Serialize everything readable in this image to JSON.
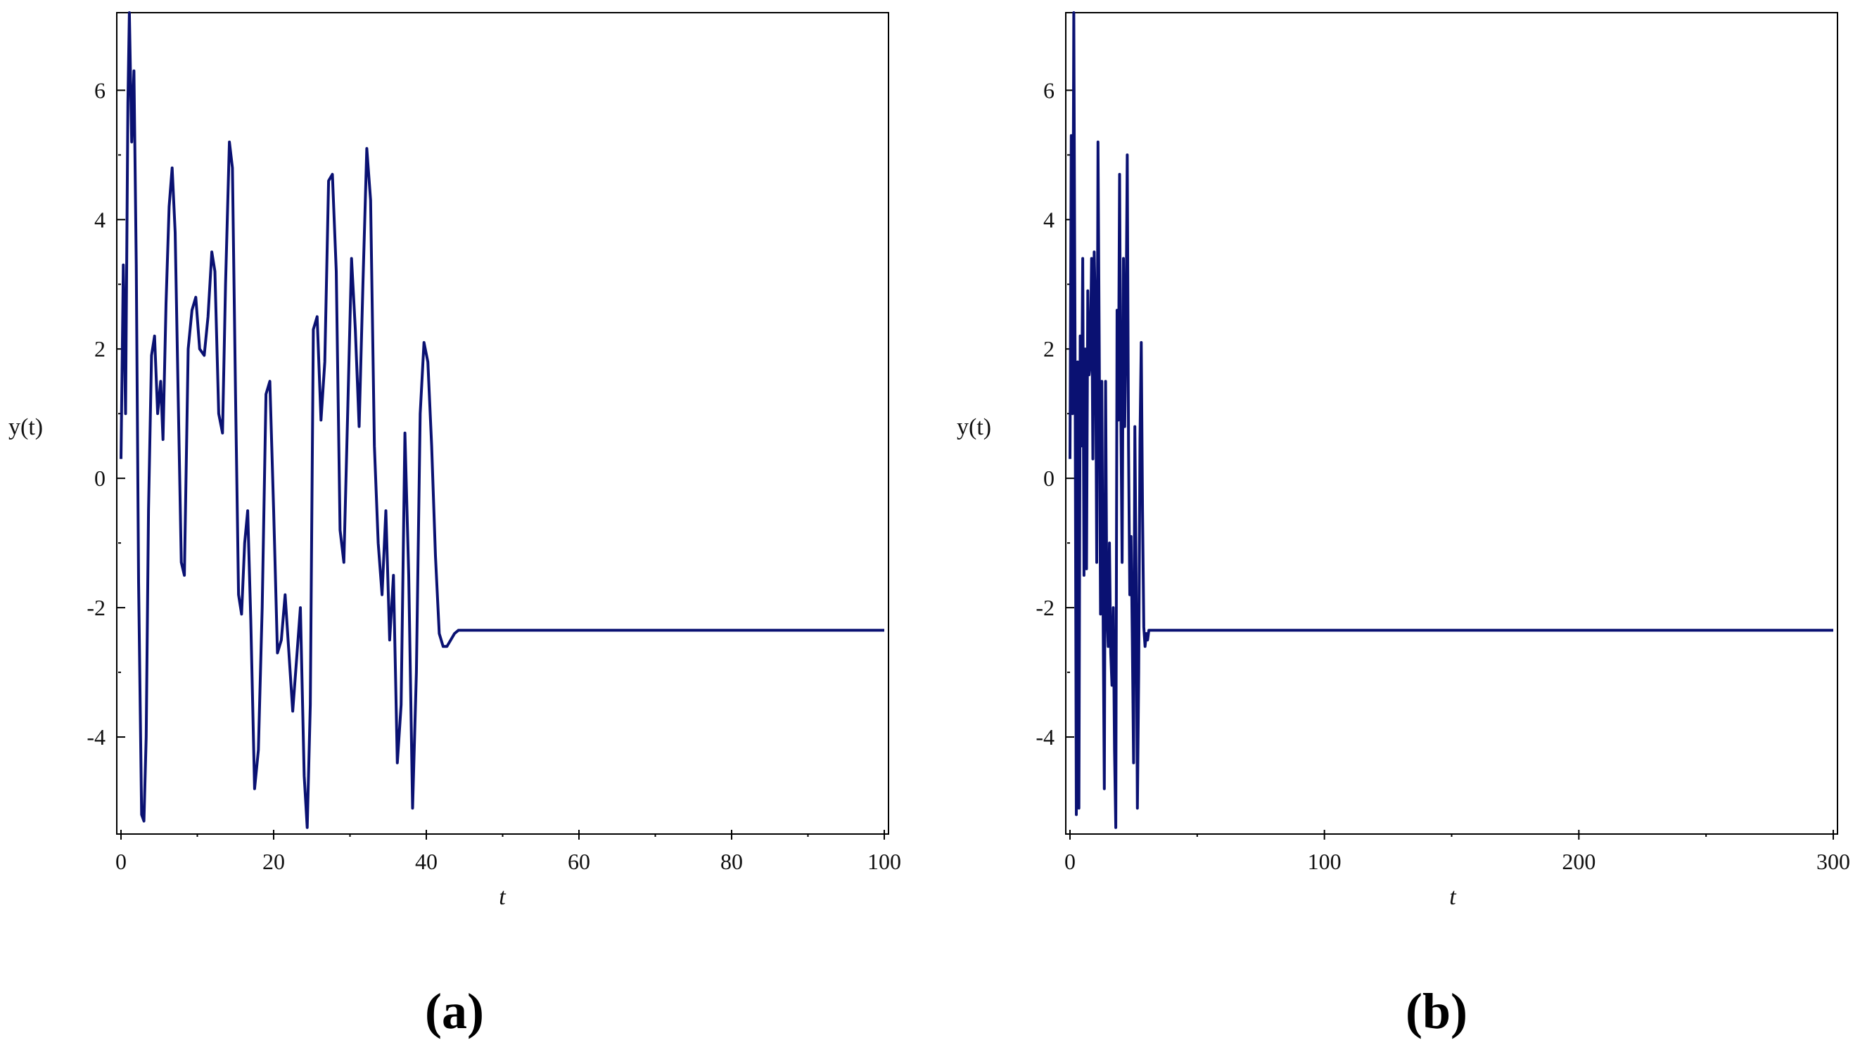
{
  "colors": {
    "line": "#0a1172",
    "frame": "#000000",
    "text": "#111111"
  },
  "chart_data": [
    {
      "type": "line",
      "panel_label": "(a)",
      "xlabel": "t",
      "ylabel": "y(t)",
      "xlim": [
        0,
        100
      ],
      "ylim": [
        -5.5,
        7.2
      ],
      "xticks": [
        0,
        20,
        40,
        60,
        80,
        100
      ],
      "yticks": [
        -4,
        -2,
        0,
        2,
        4,
        6
      ],
      "grid": false,
      "series": [
        {
          "x": [
            0,
            0.3,
            0.6,
            0.9,
            1.1,
            1.4,
            1.7,
            2.0,
            2.3,
            2.7,
            3.0,
            3.3,
            3.6,
            4.0,
            4.4,
            4.8,
            5.2,
            5.5,
            5.9,
            6.3,
            6.7,
            7.1,
            7.5,
            7.9,
            8.3,
            8.8,
            9.3,
            9.8,
            10.3,
            10.9,
            11.4,
            11.9,
            12.3,
            12.8,
            13.3,
            13.7,
            14.2,
            14.6,
            15.0,
            15.4,
            15.8,
            16.2,
            16.6,
            17.0,
            17.5,
            18.0,
            18.5,
            19.0,
            19.5,
            20.0,
            20.5,
            21.0,
            21.5,
            22.0,
            22.5,
            23.0,
            23.5,
            24.0,
            24.4,
            24.8,
            25.2,
            25.7,
            26.2,
            26.7,
            27.2,
            27.7,
            28.2,
            28.7,
            29.2,
            29.7,
            30.2,
            30.7,
            31.2,
            31.7,
            32.2,
            32.7,
            33.2,
            33.7,
            34.2,
            34.7,
            35.2,
            35.7,
            36.2,
            36.7,
            37.2,
            37.7,
            38.2,
            38.7,
            39.2,
            39.7,
            40.2,
            40.7,
            41.2,
            41.7,
            42.2,
            42.7,
            43.2,
            43.7,
            44.2,
            45.0,
            46.0,
            48.0,
            50.0,
            60.0,
            70.0,
            80.0,
            90.0,
            100.0
          ],
          "y": [
            0.3,
            3.3,
            1.0,
            5.8,
            7.2,
            5.2,
            6.3,
            3.3,
            -1.6,
            -5.2,
            -5.3,
            -4.0,
            -0.5,
            1.9,
            2.2,
            1.0,
            1.5,
            0.6,
            2.7,
            4.2,
            4.8,
            3.8,
            1.2,
            -1.3,
            -1.5,
            2.0,
            2.6,
            2.8,
            2.0,
            1.9,
            2.5,
            3.5,
            3.2,
            1.0,
            0.7,
            3.0,
            5.2,
            4.8,
            1.3,
            -1.8,
            -2.1,
            -1.0,
            -0.5,
            -2.2,
            -4.8,
            -4.2,
            -2.0,
            1.3,
            1.5,
            -0.5,
            -2.7,
            -2.5,
            -1.8,
            -2.7,
            -3.6,
            -2.8,
            -2.0,
            -4.6,
            -5.4,
            -3.5,
            2.3,
            2.5,
            0.9,
            1.8,
            4.6,
            4.7,
            3.2,
            -0.8,
            -1.3,
            1.0,
            3.4,
            2.3,
            0.8,
            3.0,
            5.1,
            4.3,
            0.5,
            -1.0,
            -1.8,
            -0.5,
            -2.5,
            -1.5,
            -4.4,
            -3.5,
            0.7,
            -1.5,
            -5.1,
            -3.0,
            1.0,
            2.1,
            1.8,
            0.5,
            -1.2,
            -2.4,
            -2.6,
            -2.6,
            -2.5,
            -2.4,
            -2.35,
            -2.35,
            -2.35,
            -2.35,
            -2.35,
            -2.35,
            -2.35,
            -2.35,
            -2.35,
            -2.35
          ]
        }
      ]
    },
    {
      "type": "line",
      "panel_label": "(b)",
      "xlabel": "t",
      "ylabel": "y(t)",
      "xlim": [
        0,
        300
      ],
      "ylim": [
        -5.5,
        7.2
      ],
      "xticks": [
        0,
        100,
        200,
        300
      ],
      "yticks": [
        -4,
        -2,
        0,
        2,
        4,
        6
      ],
      "grid": false,
      "series": [
        {
          "x": [
            0,
            0.5,
            1.0,
            1.5,
            2.0,
            2.5,
            3.0,
            3.5,
            4.0,
            4.5,
            5.0,
            5.5,
            6.0,
            6.5,
            7.0,
            7.5,
            8.0,
            8.5,
            9.0,
            9.5,
            10.0,
            10.5,
            11.0,
            11.5,
            12.0,
            12.5,
            13.0,
            13.5,
            14.0,
            14.5,
            15.0,
            15.5,
            16.0,
            16.5,
            17.0,
            17.5,
            18.0,
            18.5,
            19.0,
            19.5,
            20.0,
            20.5,
            21.0,
            21.5,
            22.0,
            22.5,
            23.0,
            23.5,
            24.0,
            24.5,
            25.0,
            25.5,
            26.0,
            26.5,
            27.0,
            27.5,
            28.0,
            28.5,
            29.0,
            29.5,
            30.0,
            30.5,
            31.0,
            31.5,
            32.0,
            32.5,
            33.0,
            33.5,
            34.0,
            34.5,
            35.0,
            35.5,
            36.0,
            36.5,
            37.0,
            37.5,
            38.0,
            38.5,
            39.0,
            39.5,
            40.0,
            40.5,
            41.0,
            41.5,
            42.0,
            43.0,
            44.0,
            45.0,
            46.0,
            47.0,
            48.0,
            50.0,
            55.0,
            60.0,
            100.0,
            150.0,
            200.0,
            250.0,
            300.0
          ],
          "y": [
            0.3,
            5.3,
            1.0,
            7.2,
            2.0,
            -5.2,
            1.8,
            -5.1,
            2.2,
            0.5,
            3.4,
            -1.5,
            2.0,
            -1.4,
            2.9,
            1.6,
            1.8,
            3.4,
            0.3,
            3.5,
            2.5,
            -1.3,
            5.2,
            2.0,
            -2.1,
            1.5,
            -2.0,
            -4.8,
            1.5,
            -2.0,
            -2.6,
            -1.0,
            -2.7,
            -3.2,
            -2.0,
            -4.2,
            -5.4,
            2.6,
            0.9,
            4.7,
            1.0,
            -1.3,
            3.4,
            0.8,
            2.3,
            5.0,
            0.5,
            -1.8,
            -0.9,
            -2.5,
            -4.4,
            0.8,
            -1.5,
            -5.1,
            -3.0,
            0.6,
            2.1,
            -0.5,
            -2.3,
            -2.6,
            -2.4,
            -2.5,
            -2.35,
            -2.35,
            -2.35,
            -2.35,
            -2.35,
            -2.35,
            -2.35,
            -2.35,
            -2.35,
            -2.35,
            -2.35,
            -2.35,
            -2.35,
            -2.35,
            -2.35,
            -2.35,
            -2.35,
            -2.35,
            -2.35,
            -2.35,
            -2.35,
            -2.35,
            -2.35,
            -2.35,
            -2.35,
            -2.35,
            -2.35,
            -2.35,
            -2.35,
            -2.35,
            -2.35,
            -2.35,
            -2.35,
            -2.35,
            -2.35,
            -2.35,
            -2.35
          ]
        }
      ]
    }
  ]
}
